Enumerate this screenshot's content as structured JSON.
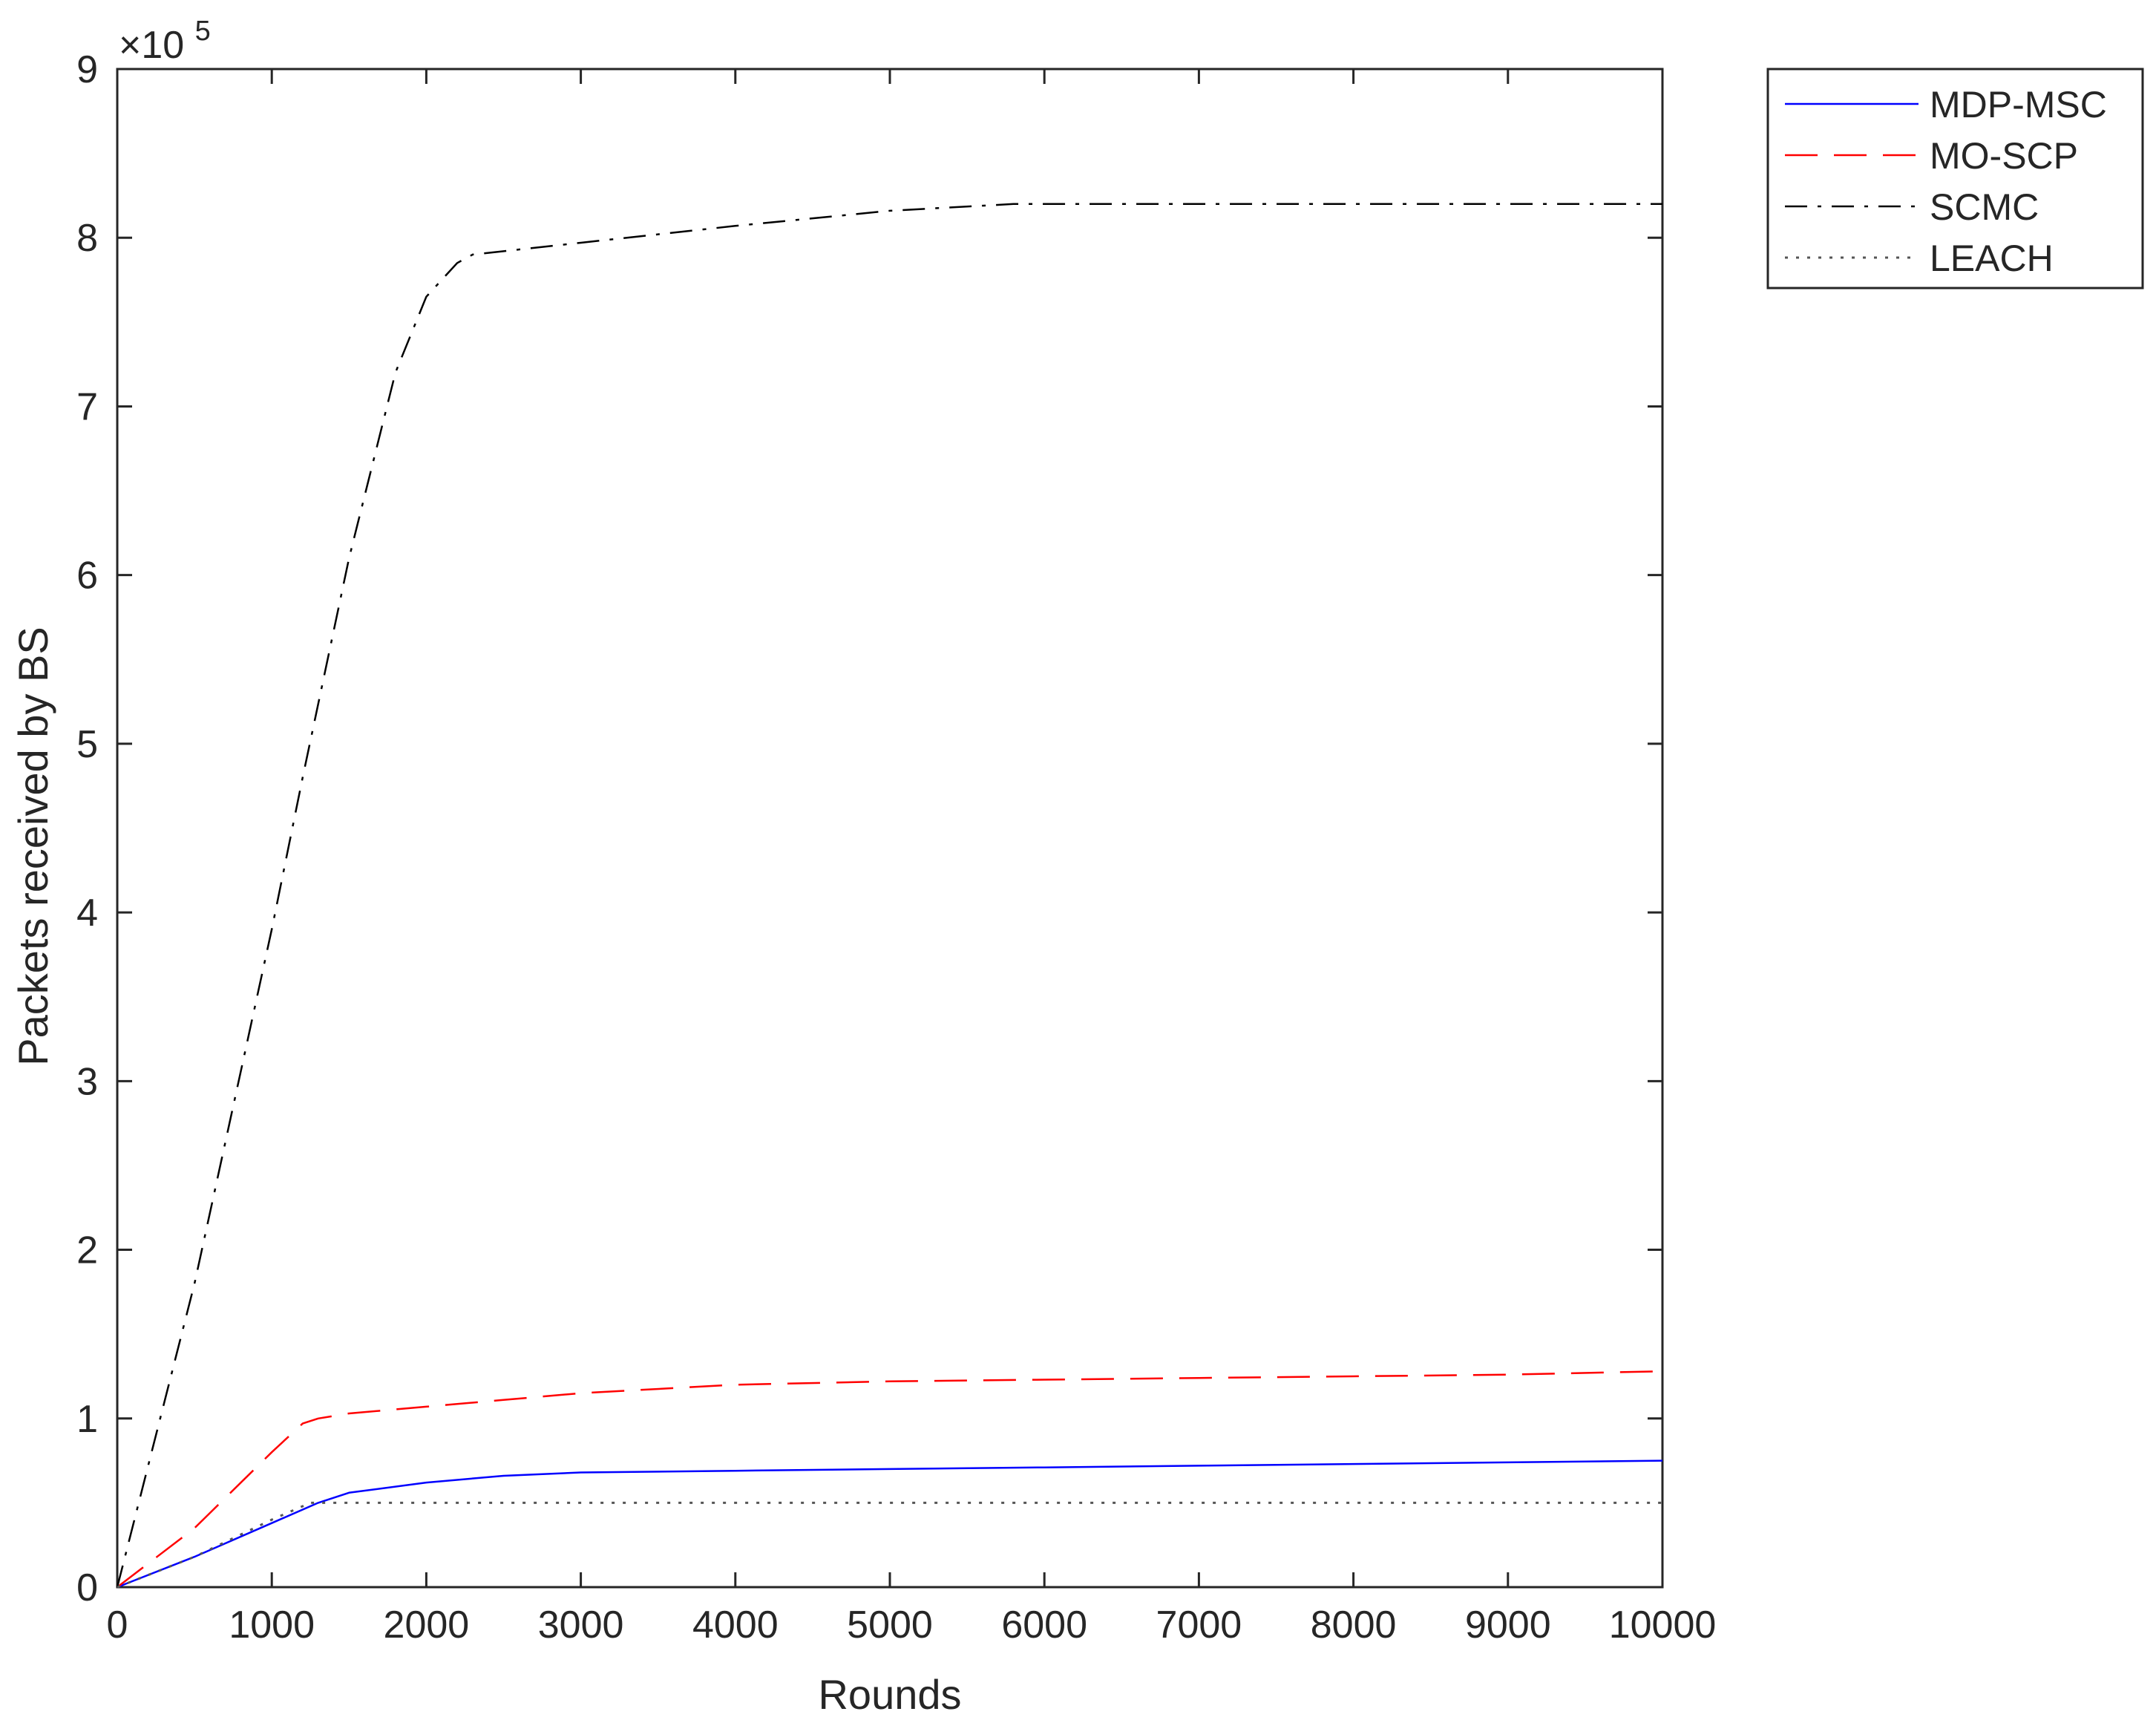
{
  "chart_data": {
    "type": "line",
    "title": "",
    "xlabel": "Rounds",
    "ylabel": "Packets received by BS",
    "y_multiplier": {
      "prefix": "×10",
      "exponent": "5"
    },
    "xlim": [
      0,
      10000
    ],
    "ylim": [
      0,
      9
    ],
    "x_ticks": [
      0,
      1000,
      2000,
      3000,
      4000,
      5000,
      6000,
      7000,
      8000,
      9000,
      10000
    ],
    "y_ticks": [
      0,
      1,
      2,
      3,
      4,
      5,
      6,
      7,
      8,
      9
    ],
    "grid": false,
    "legend_position": "outside-top-right",
    "series": [
      {
        "name": "MDP-MSC",
        "color": "#0000ff",
        "style": "solid",
        "x": [
          0,
          500,
          1000,
          1300,
          1500,
          2000,
          2500,
          3000,
          4000,
          5000,
          6000,
          7000,
          8000,
          9000,
          10000
        ],
        "y": [
          0,
          0.18,
          0.38,
          0.5,
          0.56,
          0.62,
          0.66,
          0.68,
          0.69,
          0.7,
          0.71,
          0.72,
          0.73,
          0.74,
          0.75
        ]
      },
      {
        "name": "MO-SCP",
        "color": "#ff0000",
        "style": "dashed",
        "x": [
          0,
          500,
          1000,
          1200,
          1300,
          1500,
          2000,
          2500,
          3000,
          4000,
          5000,
          6000,
          7000,
          8000,
          9000,
          10000
        ],
        "y": [
          0,
          0.35,
          0.8,
          0.97,
          1.0,
          1.03,
          1.07,
          1.11,
          1.15,
          1.2,
          1.22,
          1.23,
          1.24,
          1.25,
          1.26,
          1.28
        ]
      },
      {
        "name": "SCMC",
        "color": "#000000",
        "style": "dashdot",
        "x": [
          0,
          500,
          1000,
          1200,
          1500,
          1800,
          2000,
          2200,
          2300,
          3000,
          4000,
          5000,
          5800,
          6000,
          7000,
          8000,
          9000,
          10000
        ],
        "y": [
          0,
          1.8,
          3.9,
          4.8,
          6.1,
          7.2,
          7.65,
          7.85,
          7.9,
          7.97,
          8.07,
          8.16,
          8.2,
          8.2,
          8.2,
          8.2,
          8.2,
          8.2
        ]
      },
      {
        "name": "LEACH",
        "color": "#555555",
        "style": "dotted",
        "x": [
          0,
          500,
          1000,
          1250,
          1500,
          2000,
          3000,
          4000,
          5000,
          6000,
          7000,
          8000,
          9000,
          10000
        ],
        "y": [
          0,
          0.18,
          0.4,
          0.5,
          0.5,
          0.5,
          0.5,
          0.5,
          0.5,
          0.5,
          0.5,
          0.5,
          0.5,
          0.5
        ]
      }
    ]
  }
}
